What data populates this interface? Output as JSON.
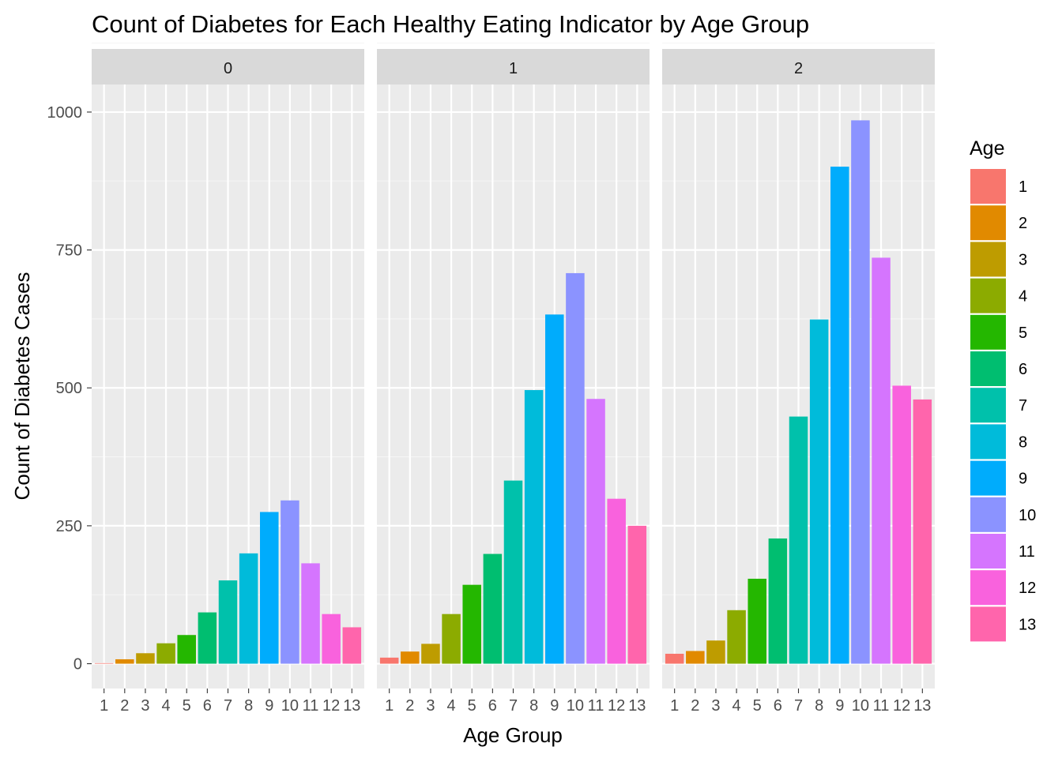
{
  "chart_data": {
    "type": "bar",
    "title": "Count of Diabetes for Each Healthy Eating Indicator by Age Group",
    "xlabel": "Age Group",
    "ylabel": "Count of Diabetes Cases",
    "categories": [
      "1",
      "2",
      "3",
      "4",
      "5",
      "6",
      "7",
      "8",
      "9",
      "10",
      "11",
      "12",
      "13"
    ],
    "ylim": [
      -45,
      1050
    ],
    "yticks": [
      0,
      250,
      500,
      750,
      1000
    ],
    "grid": true,
    "legend": {
      "title": "Age",
      "position": "right",
      "items": [
        "1",
        "2",
        "3",
        "4",
        "5",
        "6",
        "7",
        "8",
        "9",
        "10",
        "11",
        "12",
        "13"
      ]
    },
    "colors": [
      "#F8766D",
      "#E18A00",
      "#BE9C00",
      "#8CAB00",
      "#24B700",
      "#00BE70",
      "#00C1AB",
      "#00BBDA",
      "#00ACFC",
      "#8B93FF",
      "#D575FE",
      "#F962DD",
      "#FF65AC"
    ],
    "facets": [
      {
        "label": "0",
        "values": [
          1,
          8,
          19,
          37,
          52,
          93,
          151,
          200,
          275,
          296,
          182,
          90,
          66
        ]
      },
      {
        "label": "1",
        "values": [
          11,
          22,
          36,
          90,
          143,
          199,
          332,
          496,
          633,
          708,
          480,
          299,
          250
        ]
      },
      {
        "label": "2",
        "values": [
          18,
          23,
          42,
          97,
          154,
          227,
          448,
          624,
          901,
          985,
          736,
          504,
          479
        ]
      }
    ]
  }
}
